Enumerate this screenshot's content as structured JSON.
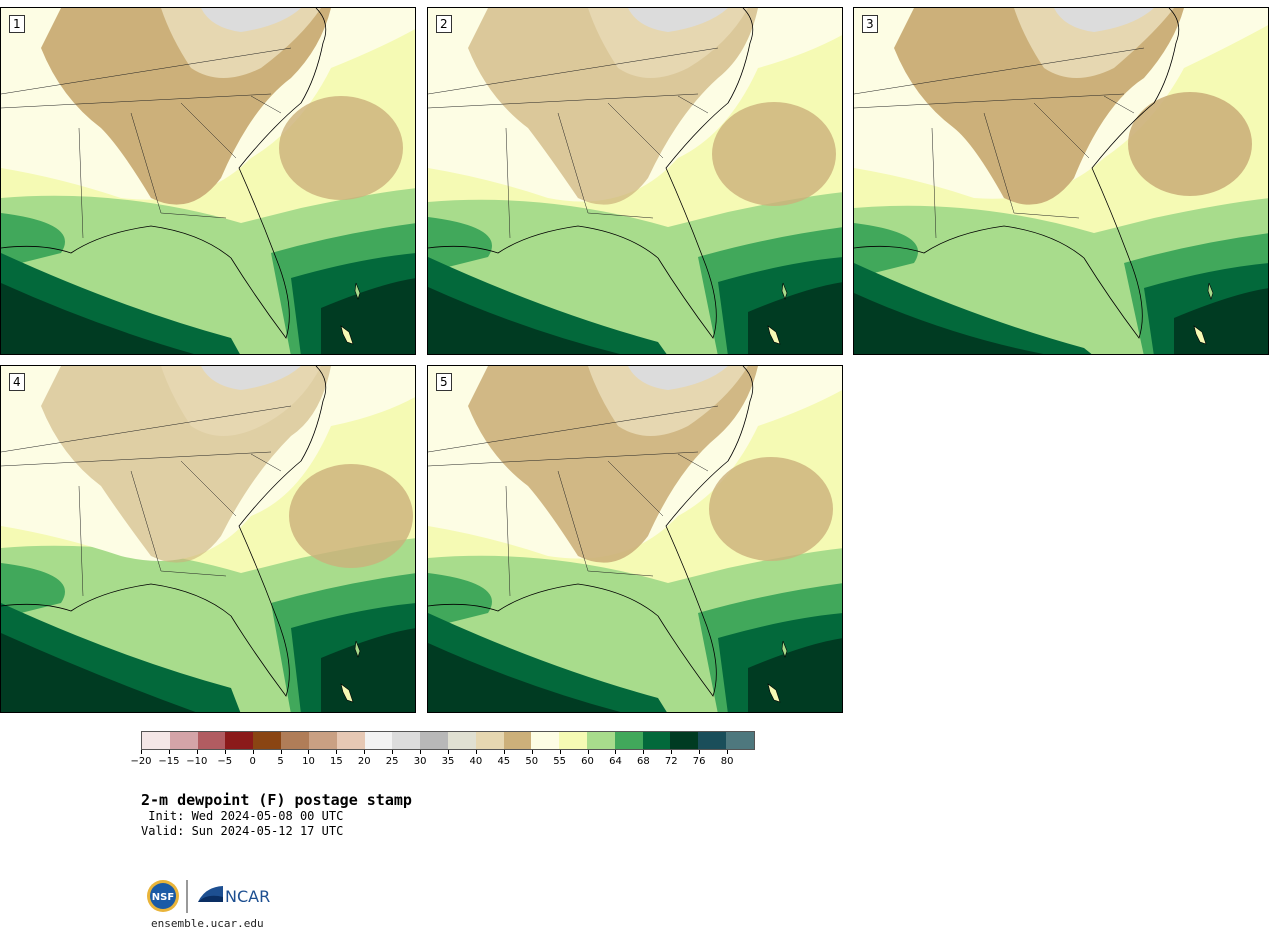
{
  "panels": [
    {
      "label": "1"
    },
    {
      "label": "2"
    },
    {
      "label": "3"
    },
    {
      "label": "4"
    },
    {
      "label": "5"
    }
  ],
  "colorbar": {
    "colors": [
      "#f4e7e7",
      "#d4a4a8",
      "#b15c61",
      "#8b1a1a",
      "#8a4513",
      "#b07d58",
      "#c9a083",
      "#e6c8b4",
      "#f3f3f3",
      "#dcdcdc",
      "#b8b8b8",
      "#e0e0d2",
      "#e6d7b1",
      "#ccb07a",
      "#fdfde4",
      "#f5fab4",
      "#a8dc8c",
      "#41a85b",
      "#03693b",
      "#003b22",
      "#1a4e5a",
      "#4e787e"
    ],
    "tick_labels": [
      "−20",
      "−15",
      "−10",
      "−5",
      "0",
      "5",
      "10",
      "15",
      "20",
      "25",
      "30",
      "35",
      "40",
      "45",
      "50",
      "55",
      "60",
      "64",
      "68",
      "72",
      "76",
      "80"
    ]
  },
  "title": "2-m dewpoint (F) postage stamp",
  "init": " Init: Wed 2024-05-08 00 UTC",
  "valid": "Valid: Sun 2024-05-12 17 UTC",
  "logos": {
    "nsf": "NSF",
    "ncar": "NCAR"
  },
  "site": "ensemble.ucar.edu"
}
